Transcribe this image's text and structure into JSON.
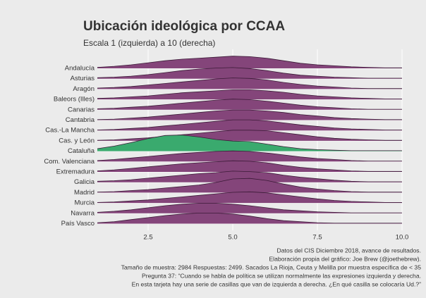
{
  "chart_data": {
    "type": "ridgeline",
    "title": "Ubicación ideológica por CCAA",
    "subtitle": "Escala 1 (izquierda) a 10 (derecha)",
    "caption": [
      "Datos del CIS Diciembre 2018, avance de resultados.",
      "Elaboración propia del gráfico: Joe Brew (@joethebrew).",
      "Tamaño de muestra: 2984 Respuestas: 2499. Sacados La Rioja, Ceuta y Melilla por muestra específica de < 35",
      "Pregunta 37: “Cuando se habla de política se utilizan normalmente las expresiones izquierda y derecha.",
      "En esta tarjeta hay una serie de casillas que van de izquierda a derecha. ¿En qué casilla se colocaría Ud.?”"
    ],
    "x": [
      1,
      1.5,
      2,
      2.5,
      3,
      3.5,
      4,
      4.5,
      5,
      5.5,
      6,
      6.5,
      7,
      7.5,
      8,
      8.5,
      9,
      9.5,
      10
    ],
    "xlim": [
      1,
      10
    ],
    "xticks": [
      2.5,
      {
        "value": 5,
        "label": "5.0"
      },
      7.5,
      {
        "value": 10,
        "label": "10.0"
      }
    ],
    "grid": true,
    "series": [
      {
        "name": "Andalucía",
        "color": "#84457a",
        "values": [
          0.02,
          0.04,
          0.07,
          0.11,
          0.15,
          0.18,
          0.2,
          0.22,
          0.24,
          0.23,
          0.2,
          0.15,
          0.1,
          0.07,
          0.05,
          0.03,
          0.02,
          0.01,
          0.01
        ]
      },
      {
        "name": "Asturias",
        "color": "#84457a",
        "values": [
          0.02,
          0.03,
          0.05,
          0.08,
          0.12,
          0.16,
          0.19,
          0.21,
          0.22,
          0.2,
          0.16,
          0.11,
          0.07,
          0.05,
          0.03,
          0.02,
          0.01,
          0.01,
          0.01
        ]
      },
      {
        "name": "Aragón",
        "color": "#84457a",
        "values": [
          0.02,
          0.03,
          0.05,
          0.08,
          0.11,
          0.14,
          0.17,
          0.2,
          0.22,
          0.21,
          0.18,
          0.13,
          0.09,
          0.06,
          0.04,
          0.02,
          0.01,
          0.01,
          0.01
        ]
      },
      {
        "name": "Baleors (Illes)",
        "color": "#84457a",
        "values": [
          0.02,
          0.03,
          0.05,
          0.07,
          0.1,
          0.13,
          0.15,
          0.17,
          0.19,
          0.19,
          0.17,
          0.14,
          0.1,
          0.07,
          0.05,
          0.03,
          0.02,
          0.01,
          0.01
        ]
      },
      {
        "name": "Canarias",
        "color": "#84457a",
        "values": [
          0.02,
          0.03,
          0.05,
          0.07,
          0.1,
          0.13,
          0.16,
          0.19,
          0.21,
          0.2,
          0.17,
          0.13,
          0.09,
          0.06,
          0.04,
          0.02,
          0.01,
          0.01,
          0.01
        ]
      },
      {
        "name": "Cantabria",
        "color": "#84457a",
        "values": [
          0.01,
          0.02,
          0.04,
          0.06,
          0.09,
          0.12,
          0.15,
          0.18,
          0.2,
          0.2,
          0.18,
          0.15,
          0.11,
          0.08,
          0.05,
          0.03,
          0.02,
          0.01,
          0.01
        ]
      },
      {
        "name": "Cas.-La Mancha",
        "color": "#84457a",
        "values": [
          0.01,
          0.02,
          0.04,
          0.06,
          0.09,
          0.12,
          0.15,
          0.18,
          0.21,
          0.21,
          0.19,
          0.15,
          0.11,
          0.08,
          0.05,
          0.03,
          0.02,
          0.01,
          0.01
        ]
      },
      {
        "name": "Cas. y León",
        "color": "#84457a",
        "values": [
          0.01,
          0.02,
          0.04,
          0.06,
          0.09,
          0.12,
          0.15,
          0.18,
          0.21,
          0.21,
          0.2,
          0.16,
          0.12,
          0.08,
          0.05,
          0.03,
          0.02,
          0.01,
          0.01
        ]
      },
      {
        "name": "Cataluña",
        "color": "#3aaa6e",
        "values": [
          0.05,
          0.1,
          0.17,
          0.25,
          0.31,
          0.32,
          0.28,
          0.23,
          0.2,
          0.19,
          0.14,
          0.09,
          0.05,
          0.03,
          0.02,
          0.01,
          0.01,
          0.01,
          0.01
        ]
      },
      {
        "name": "Com. Valenciana",
        "color": "#84457a",
        "values": [
          0.02,
          0.04,
          0.07,
          0.1,
          0.13,
          0.16,
          0.18,
          0.2,
          0.21,
          0.2,
          0.17,
          0.13,
          0.09,
          0.06,
          0.04,
          0.02,
          0.01,
          0.01,
          0.01
        ]
      },
      {
        "name": "Extremadura",
        "color": "#84457a",
        "values": [
          0.02,
          0.04,
          0.07,
          0.1,
          0.13,
          0.16,
          0.18,
          0.2,
          0.22,
          0.21,
          0.18,
          0.13,
          0.09,
          0.06,
          0.04,
          0.02,
          0.01,
          0.01,
          0.01
        ]
      },
      {
        "name": "Galicia",
        "color": "#84457a",
        "values": [
          0.02,
          0.03,
          0.05,
          0.08,
          0.11,
          0.14,
          0.17,
          0.19,
          0.22,
          0.21,
          0.19,
          0.14,
          0.1,
          0.07,
          0.04,
          0.02,
          0.01,
          0.01,
          0.01
        ]
      },
      {
        "name": "Madrid",
        "color": "#84457a",
        "values": [
          0.01,
          0.02,
          0.04,
          0.06,
          0.09,
          0.12,
          0.15,
          0.2,
          0.27,
          0.28,
          0.24,
          0.17,
          0.11,
          0.07,
          0.04,
          0.02,
          0.01,
          0.01,
          0.01
        ]
      },
      {
        "name": "Murcia",
        "color": "#84457a",
        "values": [
          0.01,
          0.02,
          0.04,
          0.06,
          0.09,
          0.12,
          0.15,
          0.18,
          0.21,
          0.22,
          0.2,
          0.16,
          0.12,
          0.08,
          0.05,
          0.03,
          0.02,
          0.01,
          0.01
        ]
      },
      {
        "name": "Navarra",
        "color": "#84457a",
        "values": [
          0.02,
          0.04,
          0.07,
          0.11,
          0.15,
          0.18,
          0.2,
          0.2,
          0.18,
          0.15,
          0.11,
          0.07,
          0.05,
          0.03,
          0.02,
          0.01,
          0.01,
          0.01,
          0.01
        ]
      },
      {
        "name": "País Vasco",
        "color": "#84457a",
        "values": [
          0.02,
          0.04,
          0.08,
          0.12,
          0.16,
          0.19,
          0.21,
          0.21,
          0.19,
          0.15,
          0.1,
          0.06,
          0.04,
          0.02,
          0.01,
          0.01,
          0.01,
          0.01,
          0.01
        ]
      }
    ]
  }
}
